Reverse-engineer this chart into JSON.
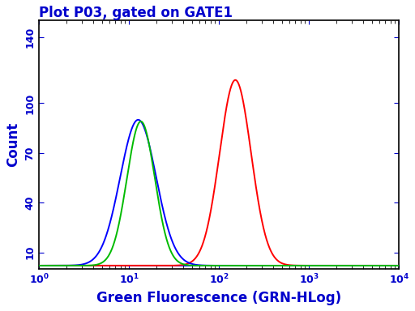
{
  "title": "Plot P03, gated on GATE1",
  "xlabel": "Green Fluorescence (GRN-HLog)",
  "ylabel": "Count",
  "text_color": "#0000CC",
  "title_fontsize": 12,
  "label_fontsize": 12,
  "tick_fontsize": 9,
  "xlim_log": [
    0,
    4
  ],
  "ylim": [
    0,
    150
  ],
  "yticks": [
    10,
    40,
    70,
    100,
    140
  ],
  "xtick_positions": [
    1,
    2,
    3,
    4
  ],
  "blue_peak_log": 1.1,
  "blue_sigma": 0.2,
  "blue_height": 88,
  "green_peak_log": 1.13,
  "green_sigma": 0.155,
  "green_height": 87,
  "red_peak_log": 2.18,
  "red_sigma": 0.175,
  "red_height": 112,
  "blue_color": "#0000FF",
  "green_color": "#00BB00",
  "red_color": "#FF0000",
  "baseline_value": 2.0,
  "lw": 1.4,
  "fig_width": 5.12,
  "fig_height": 3.84,
  "dpi": 100
}
